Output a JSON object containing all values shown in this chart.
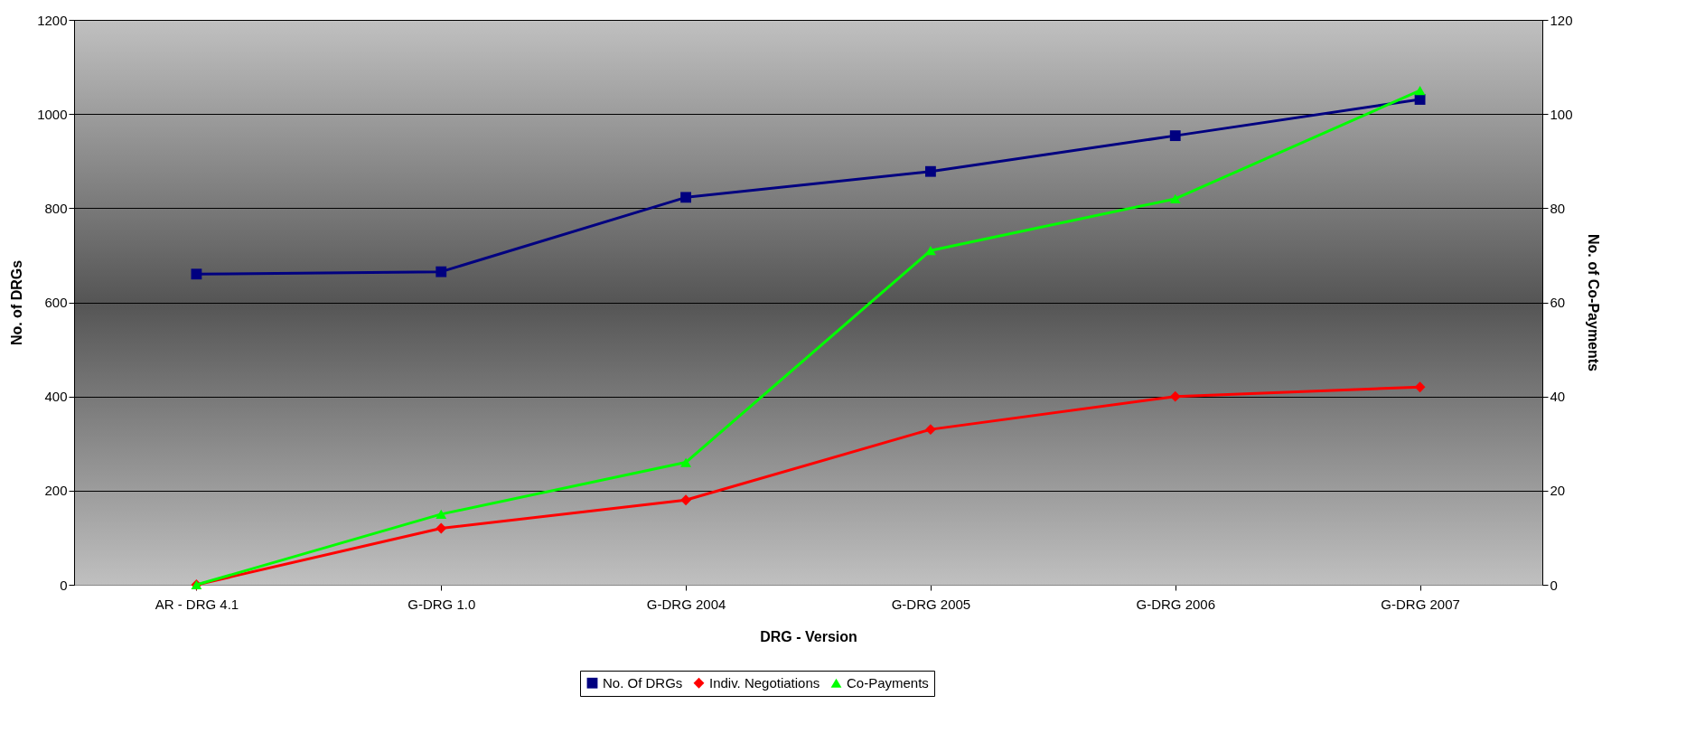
{
  "chart_data": {
    "type": "line",
    "xlabel": "DRG - Version",
    "ylabel": "No. of DRGs",
    "y2label": "No. of Co-Payments",
    "categories": [
      "AR - DRG 4.1",
      "G-DRG 1.0",
      "G-DRG 2004",
      "G-DRG 2005",
      "G-DRG 2006",
      "G-DRG 2007"
    ],
    "series": [
      {
        "name": "No. Of DRGs",
        "color": "#000080",
        "marker": "square",
        "values": [
          660,
          665,
          823,
          878,
          954,
          1031
        ]
      },
      {
        "name": "Indiv. Negotiations",
        "color": "#ff0000",
        "marker": "diamond",
        "values": [
          0,
          120,
          180,
          330,
          400,
          420
        ]
      },
      {
        "name": "Co-Payments",
        "color": "#00ff00",
        "marker": "triangle",
        "axis": "y2",
        "values": [
          0,
          15,
          26,
          71,
          82,
          105
        ]
      }
    ],
    "ylim": [
      0,
      1200
    ],
    "yticks": [
      0,
      200,
      400,
      600,
      800,
      1000,
      1200
    ],
    "y2lim": [
      0,
      120
    ],
    "y2ticks": [
      0,
      20,
      40,
      60,
      80,
      100,
      120
    ],
    "grid": "y",
    "legend": "bottom",
    "line_style": "solid"
  }
}
